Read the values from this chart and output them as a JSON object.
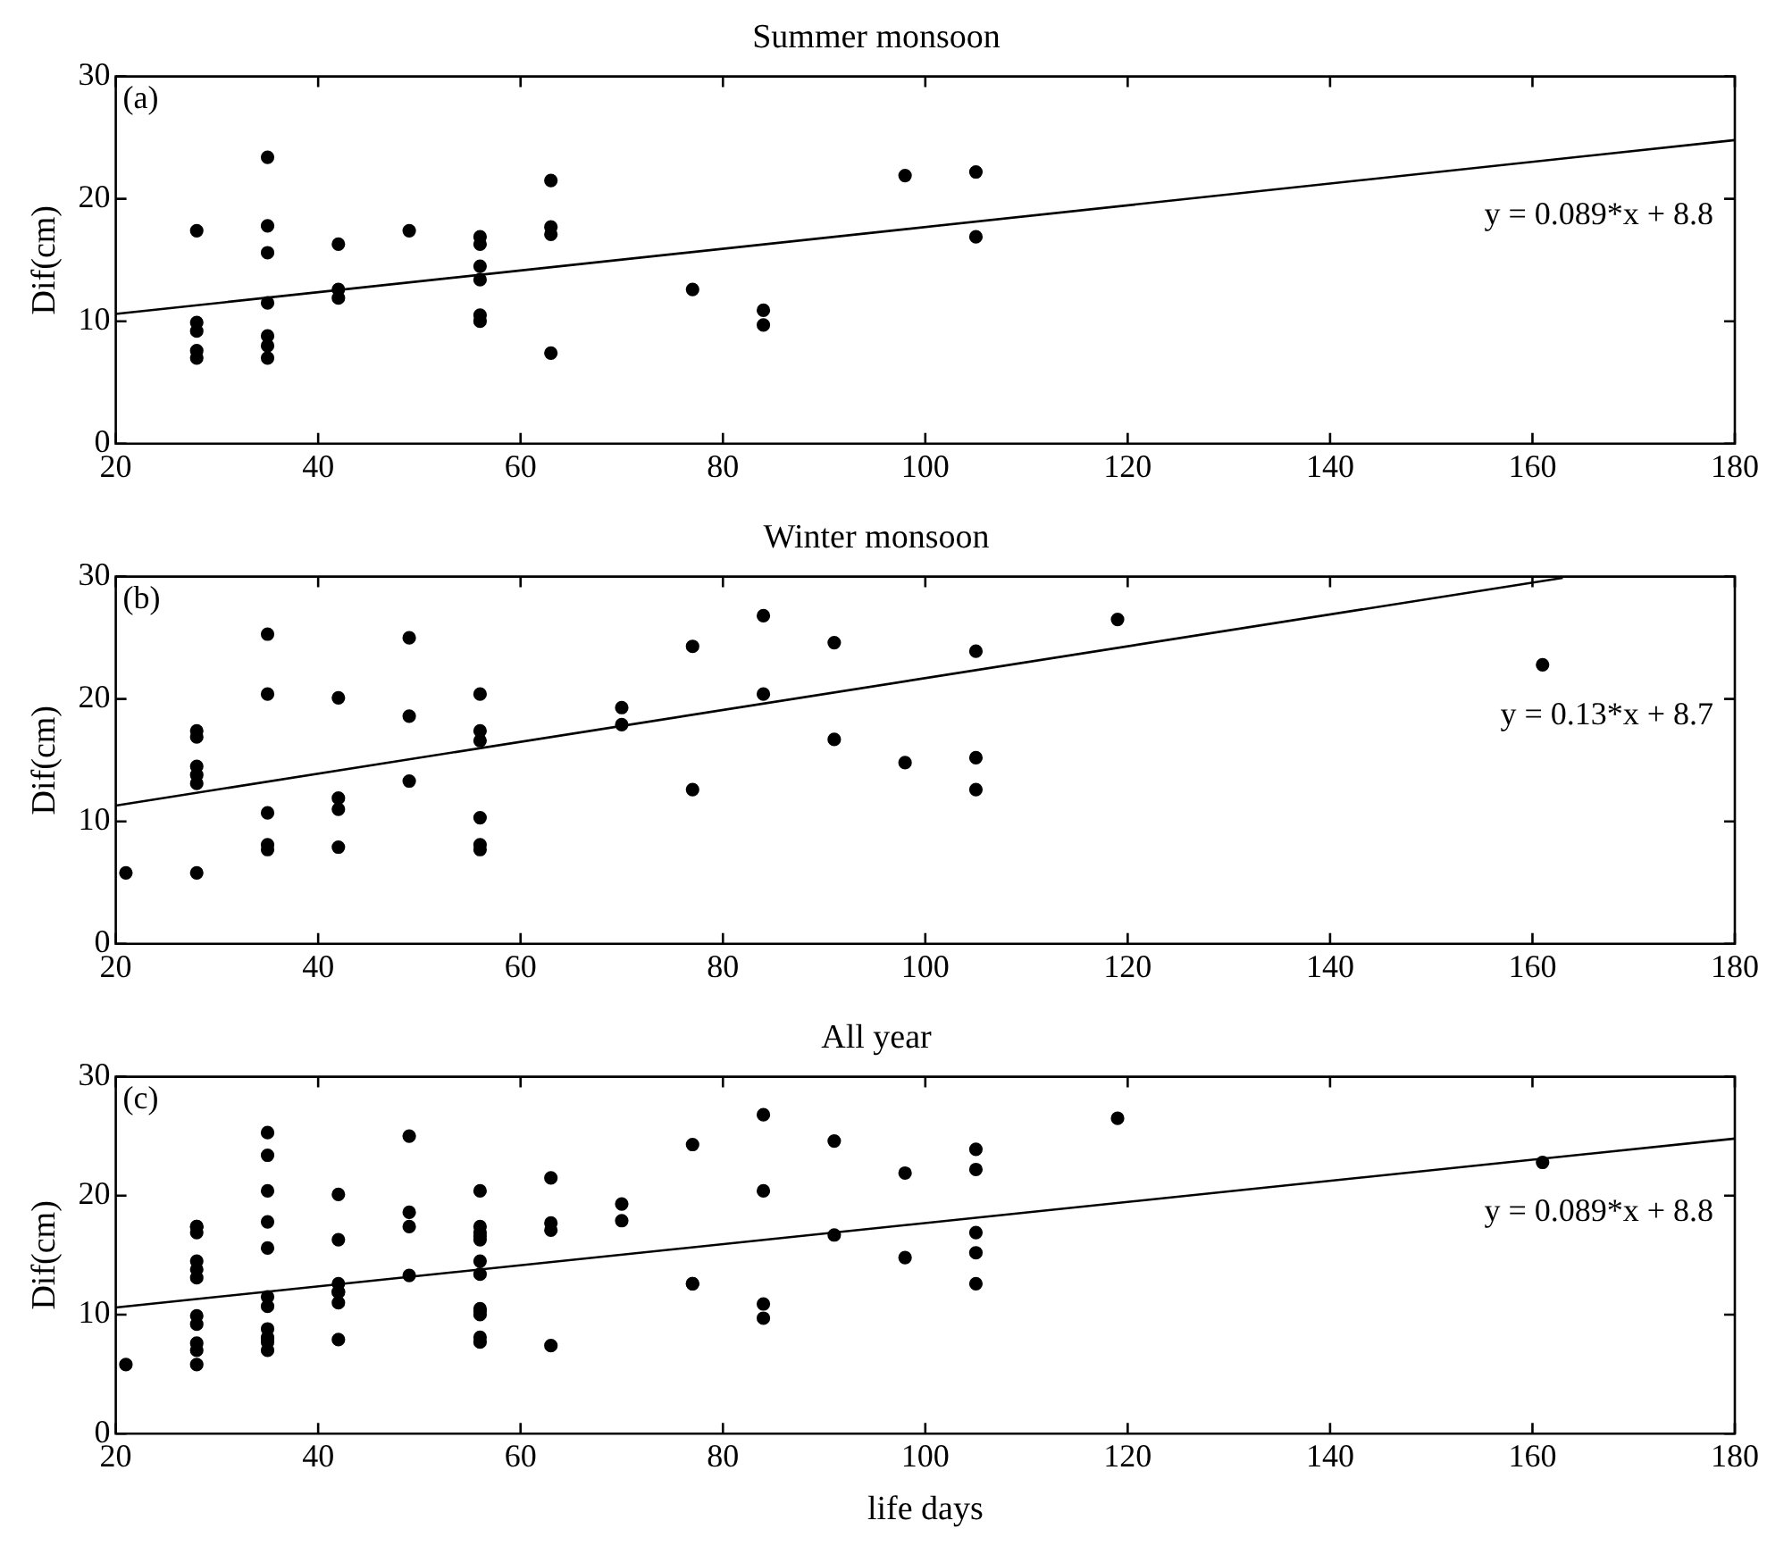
{
  "chart_data": [
    {
      "type": "scatter",
      "title": "Summer monsoon",
      "ylabel": "Dif(cm)",
      "xlim": [
        20,
        180
      ],
      "xticks": [
        20,
        40,
        60,
        80,
        100,
        120,
        140,
        160,
        180
      ],
      "ylim": [
        0,
        30
      ],
      "yticks": [
        0,
        10,
        20,
        30
      ],
      "grid": false,
      "legend": false,
      "annotations": [
        "(a)",
        "y = 0.089*x + 8.8"
      ],
      "series": [
        {
          "color": "#000000",
          "marker": "circle",
          "x": [
            28,
            28,
            28,
            28,
            28,
            35,
            35,
            35,
            35,
            35,
            35,
            35,
            42,
            42,
            42,
            49,
            56,
            56,
            56,
            56,
            56,
            56,
            63,
            63,
            63,
            63,
            77,
            84,
            84,
            98,
            105,
            105
          ],
          "values": [
            17.4,
            9.9,
            9.2,
            7.6,
            7.0,
            23.4,
            17.8,
            15.6,
            11.5,
            8.8,
            8.0,
            7.0,
            16.3,
            12.6,
            11.9,
            17.4,
            16.9,
            16.3,
            14.5,
            13.4,
            10.5,
            10.0,
            21.5,
            17.7,
            17.1,
            7.4,
            12.6,
            10.9,
            9.7,
            21.9,
            22.2,
            16.9
          ]
        },
        {
          "type": "line",
          "marker": "none",
          "color": "#000000",
          "x": [
            20,
            180
          ],
          "values": [
            10.6,
            24.8
          ]
        }
      ]
    },
    {
      "type": "scatter",
      "title": "Winter monsoon",
      "ylabel": "Dif(cm)",
      "xlim": [
        20,
        180
      ],
      "xticks": [
        20,
        40,
        60,
        80,
        100,
        120,
        140,
        160,
        180
      ],
      "ylim": [
        0,
        30
      ],
      "yticks": [
        0,
        10,
        20,
        30
      ],
      "grid": false,
      "legend": false,
      "annotations": [
        "(b)",
        "y = 0.13*x + 8.7"
      ],
      "series": [
        {
          "color": "#000000",
          "marker": "circle",
          "x": [
            21,
            28,
            28,
            28,
            28,
            28,
            28,
            35,
            35,
            35,
            35,
            35,
            42,
            42,
            42,
            42,
            49,
            49,
            49,
            56,
            56,
            56,
            56,
            56,
            56,
            70,
            70,
            77,
            77,
            84,
            84,
            91,
            91,
            98,
            105,
            105,
            105,
            119,
            161
          ],
          "values": [
            5.8,
            17.4,
            16.9,
            14.5,
            13.8,
            13.1,
            5.8,
            25.3,
            20.4,
            10.7,
            8.1,
            7.7,
            20.1,
            11.9,
            11.0,
            7.9,
            25.0,
            18.6,
            13.3,
            20.4,
            17.4,
            16.6,
            10.3,
            8.1,
            7.7,
            19.3,
            17.9,
            24.3,
            12.6,
            26.8,
            20.4,
            24.6,
            16.7,
            14.8,
            23.9,
            15.2,
            12.6,
            26.5,
            22.8
          ]
        },
        {
          "type": "line",
          "marker": "none",
          "color": "#000000",
          "x": [
            20,
            163
          ],
          "values": [
            11.3,
            29.9
          ]
        }
      ]
    },
    {
      "type": "scatter",
      "title": "All year",
      "xlabel": "life days",
      "ylabel": "Dif(cm)",
      "xlim": [
        20,
        180
      ],
      "xticks": [
        20,
        40,
        60,
        80,
        100,
        120,
        140,
        160,
        180
      ],
      "ylim": [
        0,
        30
      ],
      "yticks": [
        0,
        10,
        20,
        30
      ],
      "grid": false,
      "legend": false,
      "annotations": [
        "(c)",
        "y = 0.089*x + 8.8"
      ],
      "series": [
        {
          "color": "#000000",
          "marker": "circle",
          "x": [
            28,
            28,
            28,
            28,
            28,
            35,
            35,
            35,
            35,
            35,
            35,
            35,
            42,
            42,
            42,
            49,
            56,
            56,
            56,
            56,
            56,
            56,
            63,
            63,
            63,
            63,
            77,
            84,
            84,
            98,
            105,
            105,
            21,
            28,
            28,
            28,
            28,
            28,
            28,
            35,
            35,
            35,
            35,
            35,
            42,
            42,
            42,
            42,
            49,
            49,
            49,
            56,
            56,
            56,
            56,
            56,
            56,
            70,
            70,
            77,
            77,
            84,
            84,
            91,
            91,
            98,
            105,
            105,
            105,
            119,
            161
          ],
          "values": [
            17.4,
            9.9,
            9.2,
            7.6,
            7.0,
            23.4,
            17.8,
            15.6,
            11.5,
            8.8,
            8.0,
            7.0,
            16.3,
            12.6,
            11.9,
            17.4,
            16.9,
            16.3,
            14.5,
            13.4,
            10.5,
            10.0,
            21.5,
            17.7,
            17.1,
            7.4,
            12.6,
            10.9,
            9.7,
            21.9,
            22.2,
            16.9,
            5.8,
            17.4,
            16.9,
            14.5,
            13.8,
            13.1,
            5.8,
            25.3,
            20.4,
            10.7,
            8.1,
            7.7,
            20.1,
            11.9,
            11.0,
            7.9,
            25.0,
            18.6,
            13.3,
            20.4,
            17.4,
            16.6,
            10.3,
            8.1,
            7.7,
            19.3,
            17.9,
            24.3,
            12.6,
            26.8,
            20.4,
            24.6,
            16.7,
            14.8,
            23.9,
            15.2,
            12.6,
            26.5,
            22.8
          ]
        },
        {
          "type": "line",
          "marker": "none",
          "color": "#000000",
          "x": [
            20,
            180
          ],
          "values": [
            10.6,
            24.8
          ]
        }
      ]
    }
  ]
}
